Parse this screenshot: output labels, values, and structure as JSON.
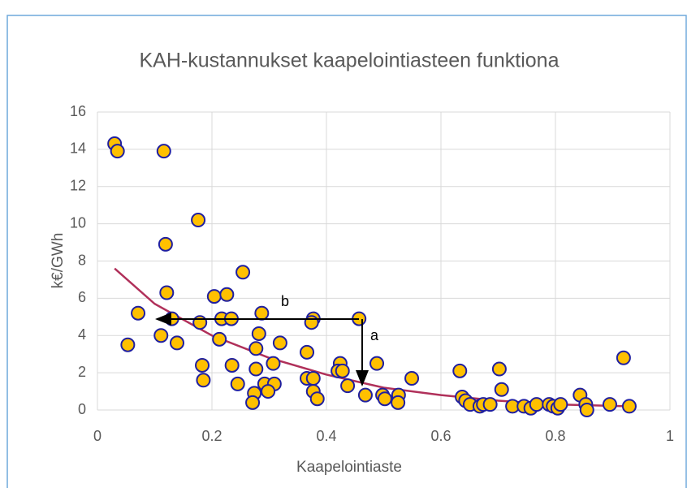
{
  "chart_data": {
    "type": "scatter",
    "title": "KAH-kustannukset kaapelointiasteen funktiona",
    "x_label": "Kaapelointiaste",
    "y_label": "k€/GWh",
    "xlim": [
      0,
      1
    ],
    "xticks": [
      0,
      0.2,
      0.4,
      0.6,
      0.8,
      1
    ],
    "ylim": [
      0,
      16
    ],
    "yticks": [
      0,
      2,
      4,
      6,
      8,
      10,
      12,
      14,
      16
    ],
    "grid": true,
    "annotations": [
      "b",
      "a"
    ],
    "series": [
      {
        "type": "scatter",
        "color": "#ffc000",
        "edgecolor": "#1f1fa0",
        "x": [
          0.03,
          0.035,
          0.116,
          0.176,
          0.119,
          0.254,
          0.121,
          0.204,
          0.226,
          0.071,
          0.287,
          0.13,
          0.217,
          0.234,
          0.377,
          0.457,
          0.179,
          0.374,
          0.111,
          0.282,
          0.213,
          0.053,
          0.139,
          0.319,
          0.277,
          0.366,
          0.424,
          0.307,
          0.488,
          0.183,
          0.235,
          0.277,
          0.42,
          0.428,
          0.633,
          0.702,
          0.919,
          0.366,
          0.377,
          0.549,
          0.185,
          0.245,
          0.292,
          0.309,
          0.706,
          0.437,
          0.377,
          0.298,
          0.274,
          0.384,
          0.468,
          0.498,
          0.502,
          0.526,
          0.525,
          0.271,
          0.637,
          0.643,
          0.651,
          0.668,
          0.674,
          0.686,
          0.725,
          0.745,
          0.757,
          0.767,
          0.789,
          0.796,
          0.804,
          0.809,
          0.843,
          0.853,
          0.855,
          0.895,
          0.929
        ],
        "y": [
          14.3,
          13.9,
          13.9,
          10.2,
          8.9,
          7.4,
          6.3,
          6.1,
          6.2,
          5.2,
          5.2,
          4.9,
          4.9,
          4.9,
          4.9,
          4.9,
          4.7,
          4.7,
          4.0,
          4.1,
          3.8,
          3.5,
          3.6,
          3.6,
          3.3,
          3.1,
          2.5,
          2.5,
          2.5,
          2.4,
          2.4,
          2.2,
          2.1,
          2.1,
          2.1,
          2.2,
          2.8,
          1.7,
          1.7,
          1.7,
          1.6,
          1.4,
          1.4,
          1.4,
          1.1,
          1.3,
          1.0,
          1.0,
          0.9,
          0.6,
          0.8,
          0.8,
          0.6,
          0.8,
          0.4,
          0.4,
          0.7,
          0.5,
          0.3,
          0.2,
          0.3,
          0.3,
          0.2,
          0.2,
          0.1,
          0.3,
          0.3,
          0.2,
          0.1,
          0.3,
          0.8,
          0.3,
          0.0,
          0.3,
          0.2
        ]
      },
      {
        "type": "line",
        "color": "#b0305a",
        "x": [
          0.03,
          0.1,
          0.2,
          0.3,
          0.4,
          0.5,
          0.6,
          0.7,
          0.8,
          0.93
        ],
        "y": [
          7.6,
          5.7,
          4.0,
          2.8,
          1.9,
          1.2,
          0.8,
          0.5,
          0.3,
          0.2
        ]
      }
    ]
  }
}
